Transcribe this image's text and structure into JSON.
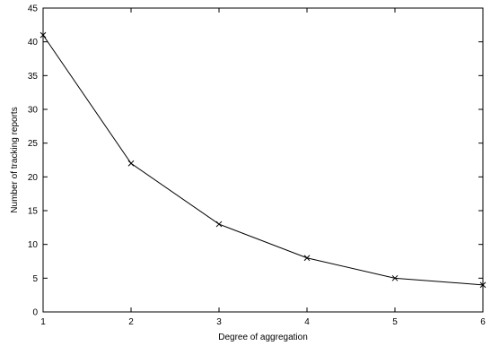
{
  "chart_data": {
    "type": "line",
    "title": "",
    "xlabel": "Degree of aggregation",
    "ylabel": "Number of tracking reports",
    "xlim": [
      1,
      6
    ],
    "ylim": [
      0,
      45
    ],
    "xticks": [
      1,
      2,
      3,
      4,
      5,
      6
    ],
    "yticks": [
      0,
      5,
      10,
      15,
      20,
      25,
      30,
      35,
      40,
      45
    ],
    "grid": false,
    "legend": "none",
    "series": [
      {
        "marker": "x",
        "color": "#000000",
        "x": [
          1,
          2,
          3,
          4,
          5,
          6
        ],
        "y": [
          41,
          22,
          13,
          8,
          5,
          4
        ]
      }
    ]
  }
}
